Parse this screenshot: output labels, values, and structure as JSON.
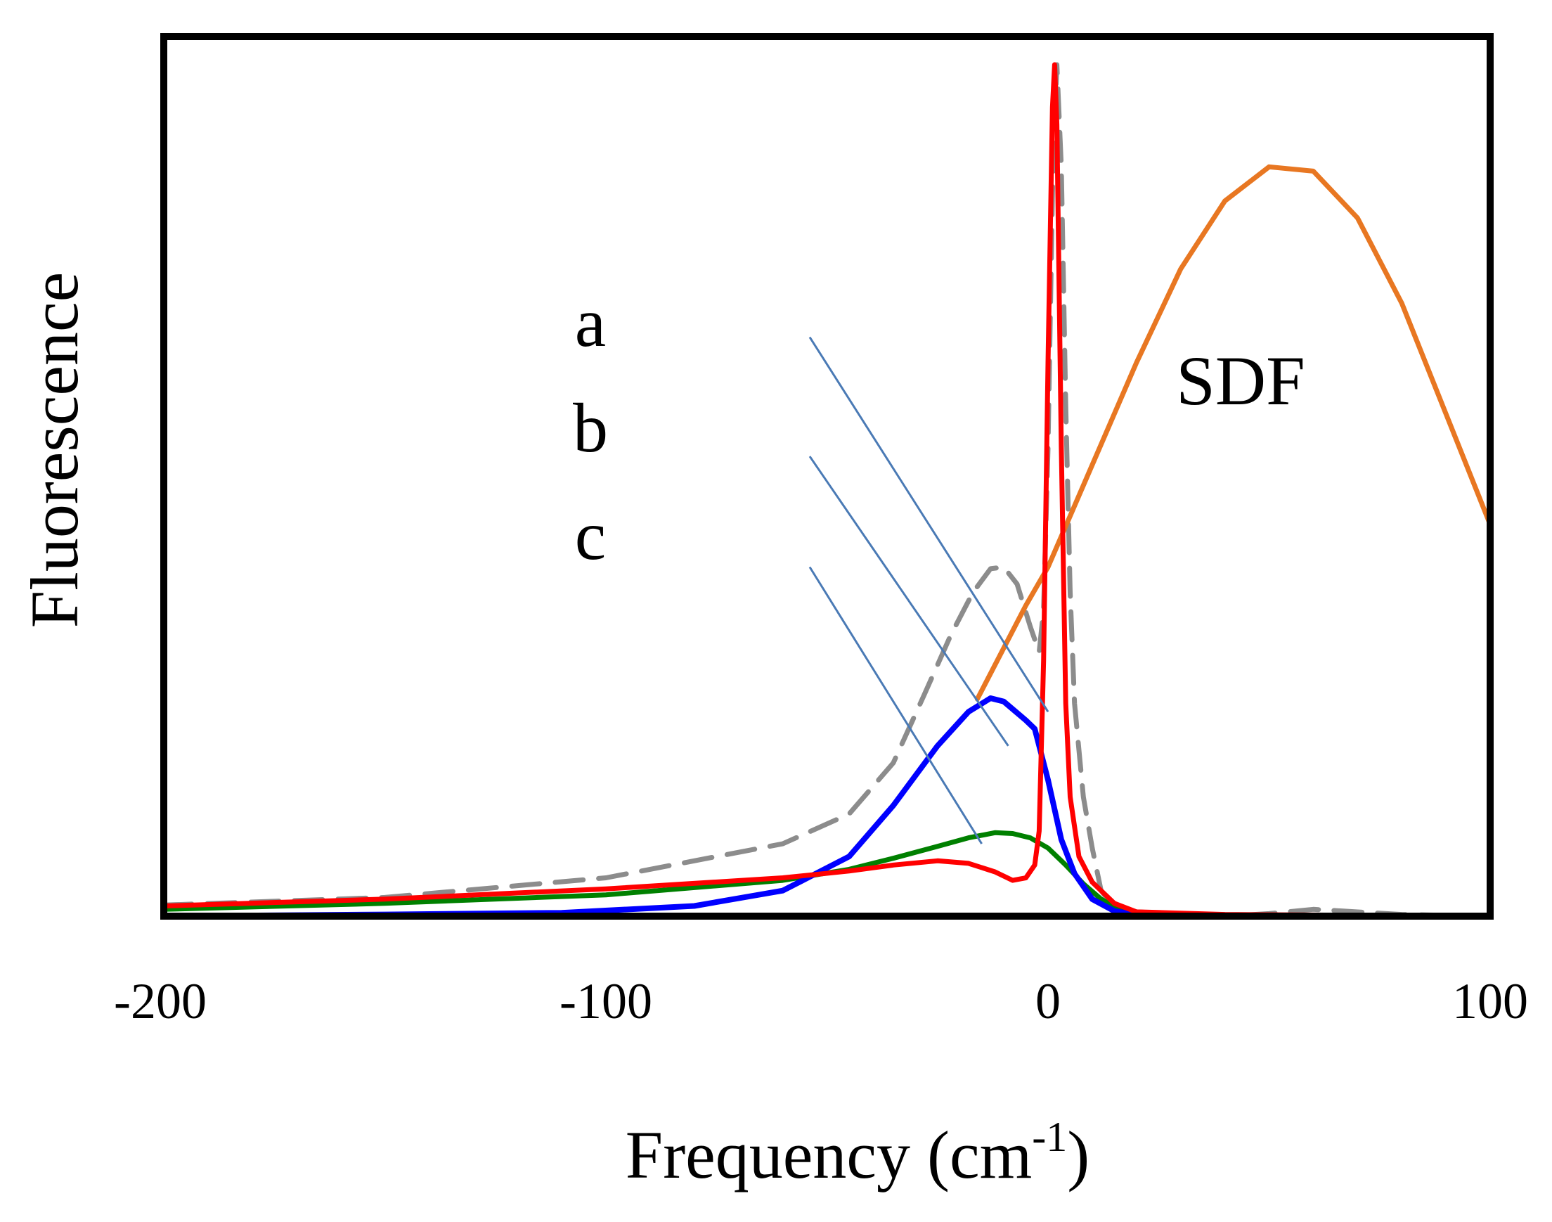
{
  "chart_data": {
    "type": "line",
    "title": "",
    "xlabel": "Frequency (cm",
    "xlabel_sup": "-1",
    "xlabel_close": ")",
    "ylabel": "Fluorescence",
    "xlim": [
      -200,
      100
    ],
    "ylim": [
      0,
      1
    ],
    "xticks": [
      -200,
      -100,
      0,
      100
    ],
    "xtick_labels": [
      "-200",
      "-100",
      "0",
      "100"
    ],
    "grid": false,
    "legend": "none",
    "colors": {
      "frame": "#000000",
      "a": "#ff0000",
      "b": "#0000ff",
      "c": "#008000",
      "sdf": "#e87722",
      "dashed": "#8c8c8c",
      "pointer": "#4a7ab5"
    },
    "annotations": [
      {
        "text": "a",
        "series": "a",
        "pointer_from": [
          -100,
          0.68
        ],
        "pointer_to": [
          0,
          0.24
        ]
      },
      {
        "text": "b",
        "series": "b",
        "pointer_from": [
          -100,
          0.54
        ],
        "pointer_to": [
          -9,
          0.2
        ]
      },
      {
        "text": "c",
        "series": "c",
        "pointer_from": [
          -100,
          0.41
        ],
        "pointer_to": [
          -15,
          0.085
        ]
      },
      {
        "text": "SDF",
        "series": "sdf"
      }
    ],
    "series": [
      {
        "name": "a",
        "style": "solid",
        "width": 6,
        "x": [
          -200,
          -150,
          -100,
          -60,
          -45,
          -35,
          -25,
          -18,
          -12,
          -8,
          -5,
          -3,
          -2,
          -1,
          0,
          1,
          1.5,
          2,
          3,
          4,
          5,
          7,
          10,
          15,
          20,
          40,
          100
        ],
        "y": [
          0.012,
          0.02,
          0.032,
          0.045,
          0.053,
          0.06,
          0.065,
          0.062,
          0.052,
          0.042,
          0.045,
          0.06,
          0.1,
          0.3,
          0.65,
          0.95,
          1.0,
          0.93,
          0.55,
          0.25,
          0.14,
          0.07,
          0.04,
          0.015,
          0.005,
          0.002,
          0.0
        ]
      },
      {
        "name": "b",
        "style": "solid",
        "width": 7,
        "x": [
          -200,
          -150,
          -110,
          -80,
          -60,
          -45,
          -35,
          -25,
          -18,
          -13,
          -10,
          -5,
          -3,
          0,
          3,
          6,
          10,
          15,
          20,
          40,
          100
        ],
        "y": [
          0.0,
          0.002,
          0.004,
          0.012,
          0.03,
          0.07,
          0.13,
          0.2,
          0.24,
          0.256,
          0.252,
          0.23,
          0.22,
          0.16,
          0.09,
          0.05,
          0.02,
          0.006,
          0.002,
          0.0,
          0.0
        ]
      },
      {
        "name": "c",
        "style": "solid",
        "width": 6,
        "x": [
          -200,
          -150,
          -100,
          -60,
          -45,
          -35,
          -25,
          -18,
          -12,
          -8,
          -4,
          0,
          4,
          8,
          12,
          16,
          20,
          40,
          100
        ],
        "y": [
          0.008,
          0.015,
          0.025,
          0.042,
          0.055,
          0.068,
          0.082,
          0.092,
          0.098,
          0.097,
          0.092,
          0.08,
          0.06,
          0.038,
          0.02,
          0.008,
          0.003,
          0.0,
          0.0
        ]
      },
      {
        "name": "SDF",
        "style": "solid",
        "width": 6,
        "x": [
          -16,
          -10,
          -5,
          0,
          5,
          10,
          20,
          30,
          40,
          50,
          60,
          70,
          80,
          90,
          100
        ],
        "y": [
          0.255,
          0.315,
          0.365,
          0.41,
          0.47,
          0.53,
          0.65,
          0.76,
          0.84,
          0.88,
          0.875,
          0.82,
          0.72,
          0.59,
          0.46
        ]
      },
      {
        "name": "dashed",
        "style": "dashed",
        "width": 6,
        "x": [
          -200,
          -150,
          -100,
          -60,
          -45,
          -35,
          -28,
          -22,
          -17,
          -13,
          -10,
          -7,
          -4,
          -2,
          -1,
          0,
          1,
          2,
          3,
          4,
          5,
          6,
          8,
          10,
          12,
          15,
          20,
          40,
          50,
          60,
          80,
          100
        ],
        "y": [
          0.013,
          0.022,
          0.045,
          0.085,
          0.12,
          0.18,
          0.26,
          0.33,
          0.38,
          0.408,
          0.41,
          0.39,
          0.34,
          0.31,
          0.36,
          0.55,
          0.85,
          1.0,
          0.88,
          0.6,
          0.38,
          0.25,
          0.14,
          0.08,
          0.03,
          0.01,
          0.005,
          0.0,
          0.003,
          0.008,
          0.002,
          0.0
        ]
      }
    ]
  }
}
